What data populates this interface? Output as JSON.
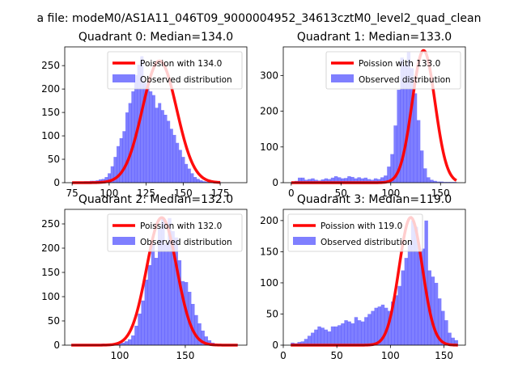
{
  "figure": {
    "suptitle": "a file: modeM0/AS1A11_046T09_9000004952_34613cztM0_level2_quad_clean"
  },
  "chart_data": [
    {
      "type": "histogram",
      "title": "Quadrant 0: Median=134.0",
      "legend_fit": "Poission with 134.0",
      "legend_obs": "Observed distribution",
      "median": 134.0,
      "xlim": [
        70,
        193
      ],
      "ylim": [
        0,
        290
      ],
      "xticks": [
        75,
        100,
        125,
        150,
        175
      ],
      "yticks": [
        0,
        50,
        100,
        150,
        200,
        250
      ],
      "fit_peak": 260,
      "fit_sigma": 11.57,
      "bin_edges_range": [
        75,
        175
      ],
      "counts": [
        2,
        2,
        2,
        2,
        3,
        3,
        4,
        4,
        5,
        7,
        8,
        12,
        20,
        35,
        55,
        78,
        95,
        110,
        150,
        170,
        195,
        230,
        252,
        270,
        215,
        205,
        195,
        187,
        160,
        170,
        155,
        145,
        132,
        115,
        102,
        85,
        70,
        55,
        40,
        30,
        20,
        12,
        8,
        5,
        3,
        2,
        2,
        2,
        2,
        2
      ]
    },
    {
      "type": "histogram",
      "title": "Quadrant 1: Median=133.0",
      "legend_fit": "Poission with 133.0",
      "legend_obs": "Observed distribution",
      "median": 133.0,
      "xlim": [
        -8,
        175
      ],
      "ylim": [
        0,
        380
      ],
      "xticks": [
        0,
        50,
        100,
        150
      ],
      "yticks": [
        0,
        100,
        200,
        300
      ],
      "fit_peak": 370,
      "fit_sigma": 11.53,
      "bin_edges_range": [
        0,
        166
      ],
      "counts": [
        3,
        5,
        14,
        14,
        8,
        10,
        12,
        8,
        6,
        9,
        12,
        10,
        14,
        18,
        15,
        12,
        13,
        18,
        16,
        12,
        15,
        12,
        14,
        10,
        8,
        12,
        10,
        15,
        20,
        45,
        80,
        160,
        260,
        350,
        330,
        365,
        320,
        250,
        175,
        90,
        40,
        15,
        8,
        5,
        3,
        3,
        2,
        2,
        2,
        2
      ]
    },
    {
      "type": "histogram",
      "title": "Quadrant 2: Median=132.0",
      "legend_fit": "Poission with 132.0",
      "legend_obs": "Observed distribution",
      "median": 132.0,
      "xlim": [
        58,
        197
      ],
      "ylim": [
        0,
        280
      ],
      "xticks": [
        100,
        150
      ],
      "yticks": [
        0,
        50,
        100,
        150,
        200,
        250
      ],
      "fit_peak": 263,
      "fit_sigma": 11.49,
      "bin_edges_range": [
        63,
        190
      ],
      "counts": [
        2,
        2,
        2,
        2,
        2,
        2,
        2,
        2,
        2,
        3,
        2,
        2,
        3,
        3,
        3,
        5,
        8,
        12,
        20,
        40,
        65,
        92,
        135,
        165,
        210,
        180,
        240,
        262,
        210,
        262,
        235,
        222,
        175,
        132,
        130,
        110,
        85,
        62,
        45,
        30,
        18,
        10,
        5,
        3,
        2,
        2,
        2,
        2,
        2,
        2
      ]
    },
    {
      "type": "histogram",
      "title": "Quadrant 3: Median=119.0",
      "legend_fit": "Poission with 119.0",
      "legend_obs": "Observed distribution",
      "median": 119.0,
      "xlim": [
        0,
        170
      ],
      "ylim": [
        0,
        218
      ],
      "xticks": [
        0,
        50,
        100,
        150
      ],
      "yticks": [
        0,
        50,
        100,
        150,
        200
      ],
      "fit_peak": 205,
      "fit_sigma": 10.91,
      "bin_edges_range": [
        7,
        163
      ],
      "counts": [
        4,
        3,
        5,
        6,
        10,
        15,
        20,
        25,
        30,
        28,
        25,
        22,
        30,
        30,
        32,
        35,
        40,
        38,
        35,
        45,
        40,
        38,
        45,
        50,
        55,
        60,
        62,
        65,
        60,
        55,
        70,
        80,
        95,
        120,
        140,
        165,
        200,
        190,
        150,
        155,
        200,
        120,
        110,
        100,
        75,
        55,
        40,
        20,
        12,
        8
      ]
    }
  ]
}
